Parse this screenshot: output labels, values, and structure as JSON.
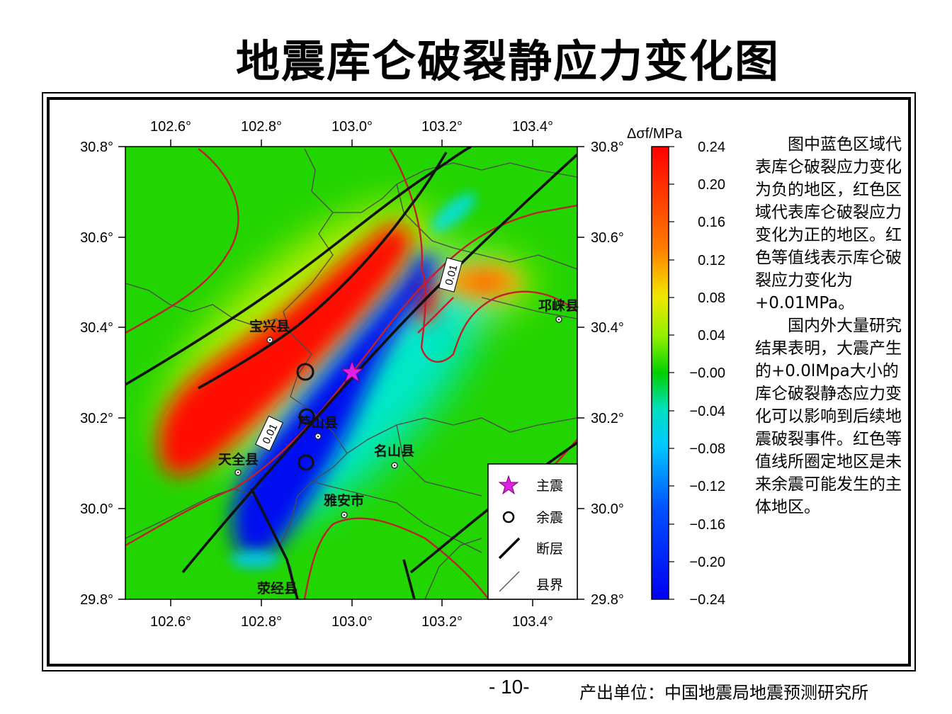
{
  "title": "地震库仑破裂静应力变化图",
  "map": {
    "x_ticks": [
      "102.6°",
      "102.8°",
      "103.0°",
      "103.2°",
      "103.4°"
    ],
    "y_ticks": [
      "30.8°",
      "30.6°",
      "30.4°",
      "30.2°",
      "30.0°",
      "29.8°"
    ],
    "contour_labels": [
      "0.01",
      "0.01"
    ],
    "place_labels": [
      "宝兴县",
      "芦山县",
      "天全县",
      "名山县",
      "雅安市",
      "荥经县",
      "邛崃县"
    ],
    "legend": {
      "mainshock": "主震",
      "aftershock": "余震",
      "fault": "断层",
      "county_border": "县界"
    },
    "colorbar": {
      "title": "Δσf/MPa",
      "ticks": [
        "0.24",
        "0.20",
        "0.16",
        "0.12",
        "0.08",
        "0.04",
        "−0.00",
        "−0.04",
        "−0.08",
        "−0.12",
        "−0.16",
        "−0.20",
        "−0.24"
      ],
      "colors": [
        "#ff0000",
        "#ff8000",
        "#f0e000",
        "#80f000",
        "#00d800",
        "#00e8ff",
        "#0040ff",
        "#0000f0"
      ]
    }
  },
  "description": {
    "p1": "图中蓝色区域代表库仑破裂应力变化为负的地区，红色区域代表库仑破裂应力变化为正的地区。红色等值线表示库仑破裂应力变化为+0.01MPa。",
    "p2": "国内外大量研究结果表明，大震产生的+0.0lMpa大小的库仑破裂静态应力变化可以影响到后续地震破裂事件。红色等值线所圈定地区是未来余震可能发生的主体地区。"
  },
  "page_number": "- 10-",
  "producer": "产出单位：中国地震局地震预测研究所"
}
